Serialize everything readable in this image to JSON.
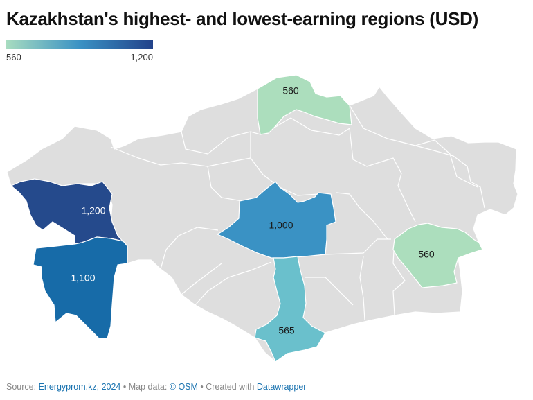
{
  "title": "Kazakhstan's highest- and lowest-earning regions (USD)",
  "legend": {
    "min_label": "560",
    "max_label": "1,200",
    "min_value": 560,
    "max_value": 1200,
    "color_low": "#a8dcc0",
    "color_mid": "#3a92c4",
    "color_high": "#22428a"
  },
  "map": {
    "no_data_color": "#dedede",
    "regions": [
      {
        "label": "560",
        "value": 560,
        "color": "#acdebd"
      },
      {
        "label": "1,200",
        "value": 1200,
        "color": "#254a8c"
      },
      {
        "label": "1,100",
        "value": 1100,
        "color": "#176ba8"
      },
      {
        "label": "1,000",
        "value": 1000,
        "color": "#3a92c4"
      },
      {
        "label": "565",
        "value": 565,
        "color": "#6ac0cc"
      },
      {
        "label": "560",
        "value": 560,
        "color": "#acdebd"
      }
    ]
  },
  "footer": {
    "source_prefix": "Source: ",
    "source_link": "Energyprom.kz, 2024",
    "map_prefix": " • Map data: ",
    "map_link": "© OSM",
    "created_prefix": " • Created with ",
    "created_link": "Datawrapper"
  }
}
